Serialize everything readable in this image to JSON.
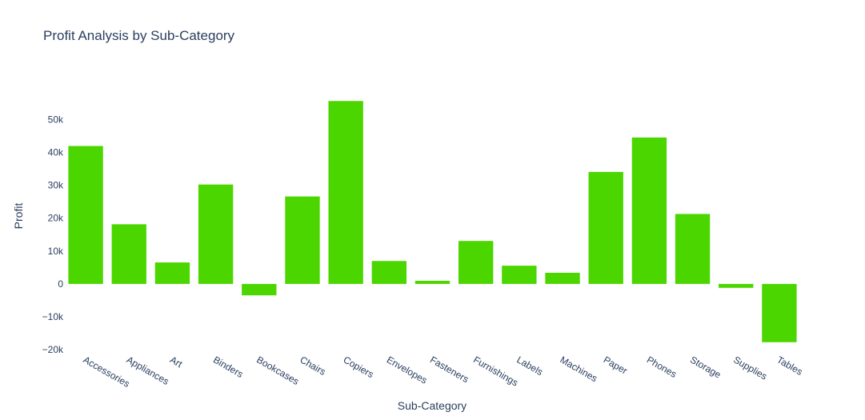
{
  "chart_data": {
    "type": "bar",
    "title": "Profit Analysis by Sub-Category",
    "xlabel": "Sub-Category",
    "ylabel": "Profit",
    "categories": [
      "Accessories",
      "Appliances",
      "Art",
      "Binders",
      "Bookcases",
      "Chairs",
      "Copiers",
      "Envelopes",
      "Fasteners",
      "Furnishings",
      "Labels",
      "Machines",
      "Paper",
      "Phones",
      "Storage",
      "Supplies",
      "Tables"
    ],
    "values": [
      41937,
      18138,
      6528,
      30222,
      -3473,
      26590,
      55618,
      6964,
      950,
      13059,
      5546,
      3385,
      34054,
      44516,
      21279,
      -1189,
      -17725
    ],
    "y_ticks": [
      -20000,
      -10000,
      0,
      10000,
      20000,
      30000,
      40000,
      50000
    ],
    "y_tick_labels": [
      "−20k",
      "−10k",
      "0",
      "10k",
      "20k",
      "30k",
      "40k",
      "50k"
    ],
    "ylim": [
      -20700,
      62000
    ],
    "bar_color": "#4cd600",
    "grid": false,
    "legend": "none"
  }
}
